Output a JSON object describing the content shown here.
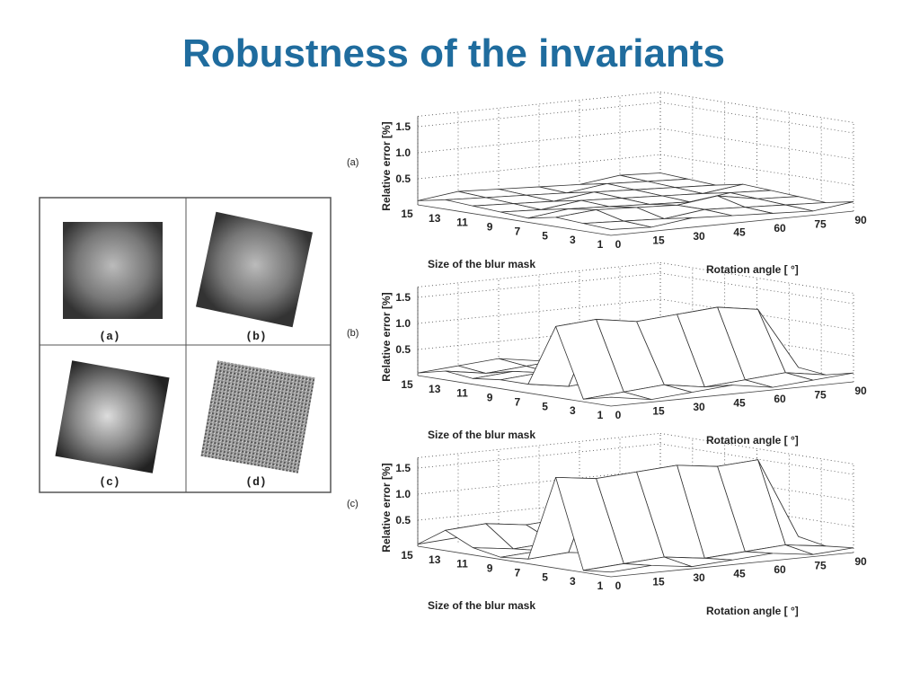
{
  "title": "Robustness of the invariants",
  "images": [
    {
      "label": "(a)"
    },
    {
      "label": "(b)"
    },
    {
      "label": "(c)"
    },
    {
      "label": "(d)"
    }
  ],
  "plots": [
    {
      "label": "(a)",
      "z_axis_label": "Relative error  [%]",
      "z_ticks": [
        "0.5",
        "1.0",
        "1.5"
      ],
      "mask_axis_label": "Size of the blur mask",
      "mask_ticks": [
        "15",
        "13",
        "11",
        "9",
        "7",
        "5",
        "3",
        "1"
      ],
      "angle_axis_label": "Rotation angle  [ °]",
      "angle_ticks": [
        "0",
        "15",
        "30",
        "45",
        "60",
        "75",
        "90"
      ]
    },
    {
      "label": "(b)",
      "z_axis_label": "Relative error  [%]",
      "z_ticks": [
        "0.5",
        "1.0",
        "1.5"
      ],
      "mask_axis_label": "Size of the blur mask",
      "mask_ticks": [
        "15",
        "13",
        "11",
        "9",
        "7",
        "5",
        "3",
        "1"
      ],
      "angle_axis_label": "Rotation angle  [ °]",
      "angle_ticks": [
        "0",
        "15",
        "30",
        "45",
        "60",
        "75",
        "90"
      ]
    },
    {
      "label": "(c)",
      "z_axis_label": "Relative error  [%]",
      "z_ticks": [
        "0.5",
        "1.0",
        "1.5"
      ],
      "mask_axis_label": "Size of the blur mask",
      "mask_ticks": [
        "15",
        "13",
        "11",
        "9",
        "7",
        "5",
        "3",
        "1"
      ],
      "angle_axis_label": "Rotation angle  [ °]",
      "angle_ticks": [
        "0",
        "15",
        "30",
        "45",
        "60",
        "75",
        "90"
      ]
    }
  ]
}
